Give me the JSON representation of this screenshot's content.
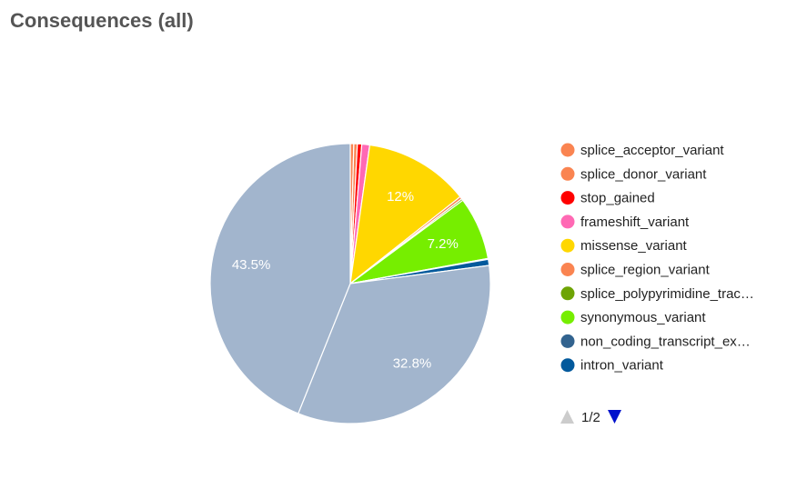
{
  "chart_data": {
    "type": "pie",
    "title": "Consequences (all)",
    "slices": [
      {
        "name": "splice_acceptor_variant",
        "legend_label": "splice_acceptor_variant",
        "value": 0.4,
        "color": "#fa8451",
        "label": ""
      },
      {
        "name": "splice_donor_variant",
        "legend_label": "splice_donor_variant",
        "value": 0.4,
        "color": "#fa8451",
        "label": ""
      },
      {
        "name": "stop_gained",
        "legend_label": "stop_gained",
        "value": 0.5,
        "color": "#ff0000",
        "label": ""
      },
      {
        "name": "frameshift_variant",
        "legend_label": "frameshift_variant",
        "value": 0.9,
        "color": "#ff69b4",
        "label": ""
      },
      {
        "name": "missense_variant",
        "legend_label": "missense_variant",
        "value": 12.0,
        "color": "#ffd700",
        "label": "12%"
      },
      {
        "name": "splice_region_variant",
        "legend_label": "splice_region_variant",
        "value": 0.3,
        "color": "#fa8451",
        "label": ""
      },
      {
        "name": "splice_polypyrimidine_tract_variant",
        "legend_label": "splice_polypyrimidine_trac…",
        "value": 0.2,
        "color": "#6ea405",
        "label": ""
      },
      {
        "name": "synonymous_variant",
        "legend_label": "synonymous_variant",
        "value": 7.2,
        "color": "#76ee00",
        "label": "7.2%"
      },
      {
        "name": "non_coding_transcript_exon_variant",
        "legend_label": "non_coding_transcript_ex…",
        "value": 0.1,
        "color": "#32638f",
        "label": ""
      },
      {
        "name": "intron_variant",
        "legend_label": "intron_variant",
        "value": 0.7,
        "color": "#02599c",
        "label": ""
      },
      {
        "name": "other_page2_a",
        "legend_label": "",
        "value": 32.8,
        "color": "#a2b5cd",
        "label": "32.8%"
      },
      {
        "name": "other_page2_b",
        "legend_label": "",
        "value": 43.5,
        "color": "#a2b5cd",
        "label": "43.5%"
      }
    ],
    "legend": {
      "placement": "right",
      "visible_count": 10,
      "page_indicator": "1/2",
      "prev_arrow_color": "#cccccc",
      "next_arrow_color": "#0011cc"
    },
    "slice_border_color": "#ffffff"
  }
}
